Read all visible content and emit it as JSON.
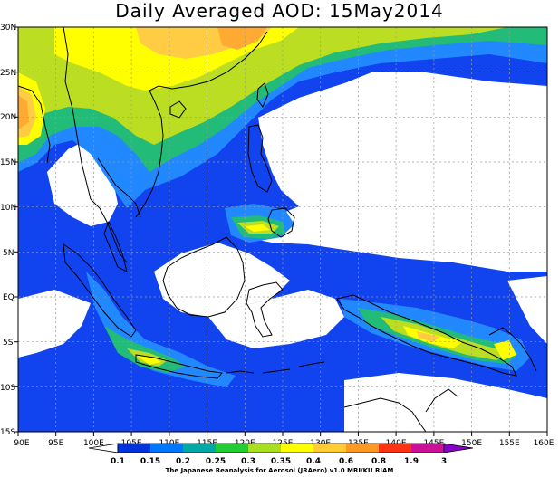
{
  "title": "Daily Averaged AOD: 15May2014",
  "y_labels": [
    "30N",
    "25N",
    "20N",
    "15N",
    "10N",
    "5N",
    "EQ",
    "5S",
    "10S",
    "15S"
  ],
  "x_labels": [
    "90E",
    "95E",
    "100E",
    "105E",
    "110E",
    "115E",
    "120E",
    "125E",
    "130E",
    "135E",
    "140E",
    "145E",
    "150E",
    "155E",
    "160E"
  ],
  "colorbar": {
    "ticks": [
      "0.1",
      "0.15",
      "0.2",
      "0.25",
      "0.3",
      "0.35",
      "0.4",
      "0.6",
      "0.8",
      "1.9",
      "3"
    ],
    "colors": [
      "#0033dd",
      "#0077ff",
      "#00a8a8",
      "#22cc33",
      "#a8e020",
      "#ffff00",
      "#ffcc33",
      "#ff9922",
      "#ff3311",
      "#cc1199"
    ]
  },
  "levels": {
    "l1": "#1144ee",
    "l2": "#2288ff",
    "l3": "#22bb77",
    "l4": "#bbdd22",
    "l5": "#ffff00",
    "l6": "#ffcc44",
    "l7": "#ffaa33"
  },
  "credit": "The Japanese Reanalysis for Aerosol (JRAero) v1.0 MRI/KU RIAM"
}
